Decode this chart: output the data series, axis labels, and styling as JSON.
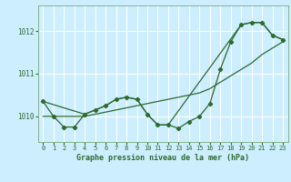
{
  "xlabel": "Graphe pression niveau de la mer (hPa)",
  "bg_color": "#cceeff",
  "grid_color": "#ffffff",
  "line_color": "#2d6a2d",
  "ylim": [
    1009.4,
    1012.6
  ],
  "xlim": [
    -0.5,
    23.5
  ],
  "yticks": [
    1010,
    1011,
    1012
  ],
  "xticks": [
    0,
    1,
    2,
    3,
    4,
    5,
    6,
    7,
    8,
    9,
    10,
    11,
    12,
    13,
    14,
    15,
    16,
    17,
    18,
    19,
    20,
    21,
    22,
    23
  ],
  "series1_x": [
    0,
    1,
    2,
    3,
    4,
    5,
    6,
    7,
    8,
    9,
    10,
    11,
    12,
    13,
    14,
    15,
    16,
    17,
    18,
    19,
    20,
    21,
    22,
    23
  ],
  "series1_y": [
    1010.35,
    1010.0,
    1009.75,
    1009.75,
    1010.05,
    1010.15,
    1010.25,
    1010.4,
    1010.45,
    1010.4,
    1010.05,
    1009.8,
    1009.8,
    1009.72,
    1009.88,
    1010.0,
    1010.3,
    1011.1,
    1011.75,
    1012.15,
    1012.2,
    1012.2,
    1011.9,
    1011.8
  ],
  "series2_x": [
    0,
    1,
    2,
    3,
    4,
    5,
    6,
    7,
    8,
    9,
    10,
    11,
    12,
    13,
    14,
    15,
    16,
    17,
    18,
    19,
    20,
    21,
    22,
    23
  ],
  "series2_y": [
    1010.0,
    1010.0,
    1010.0,
    1010.0,
    1010.0,
    1010.05,
    1010.1,
    1010.15,
    1010.2,
    1010.25,
    1010.3,
    1010.35,
    1010.4,
    1010.45,
    1010.5,
    1010.55,
    1010.65,
    1010.8,
    1010.95,
    1011.1,
    1011.25,
    1011.45,
    1011.6,
    1011.75
  ],
  "series3_x": [
    0,
    4,
    5,
    6,
    7,
    8,
    9,
    10,
    11,
    12,
    19,
    20,
    21,
    22,
    23
  ],
  "series3_y": [
    1010.35,
    1010.05,
    1010.15,
    1010.25,
    1010.4,
    1010.45,
    1010.4,
    1010.05,
    1009.8,
    1009.8,
    1012.15,
    1012.2,
    1012.2,
    1011.9,
    1011.8
  ]
}
